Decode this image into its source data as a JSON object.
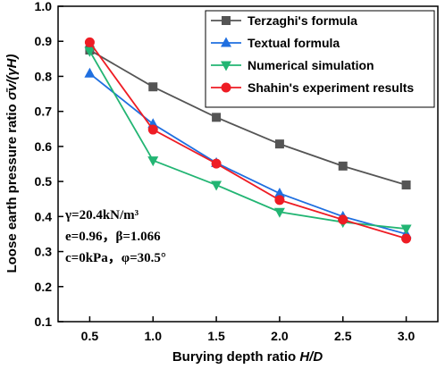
{
  "chart_data": {
    "type": "line",
    "x": [
      0.5,
      1.0,
      1.5,
      2.0,
      2.5,
      3.0
    ],
    "x_tick_labels": [
      "0.5",
      "1.0",
      "1.5",
      "2.0",
      "2.5",
      "3.0"
    ],
    "y_tick_labels": [
      "0.1",
      "0.2",
      "0.3",
      "0.4",
      "0.5",
      "0.6",
      "0.7",
      "0.8",
      "0.9",
      "1.0"
    ],
    "xlim": [
      0.25,
      3.25
    ],
    "ylim": [
      0.1,
      1.0
    ],
    "xlabel_prefix": "Burying depth ratio ",
    "xlabel_var": "H/D",
    "ylabel_prefix": "Loose earth pressure ratio ",
    "ylabel_var": "σ̄v/(γH)",
    "legend_position": "top-right",
    "grid": false,
    "series": [
      {
        "name": "Terzaghi's formula",
        "color": "#555555",
        "marker": "square",
        "values": [
          0.875,
          0.77,
          0.683,
          0.607,
          0.544,
          0.49
        ]
      },
      {
        "name": "Textual formula",
        "color": "#1f6fe0",
        "marker": "triangle-up",
        "values": [
          0.808,
          0.664,
          0.553,
          0.466,
          0.4,
          0.35
        ]
      },
      {
        "name": "Numerical simulation",
        "color": "#22b573",
        "marker": "triangle-down",
        "values": [
          0.872,
          0.56,
          0.49,
          0.413,
          0.384,
          0.365
        ]
      },
      {
        "name": "Shahin's experiment results",
        "color": "#ee1c24",
        "marker": "circle",
        "values": [
          0.897,
          0.648,
          0.551,
          0.447,
          0.391,
          0.337
        ]
      }
    ],
    "annotations": [
      "γ=20.4kN/m³",
      "e=0.96，β=1.066",
      "c=0kPa，φ=30.5°"
    ]
  }
}
